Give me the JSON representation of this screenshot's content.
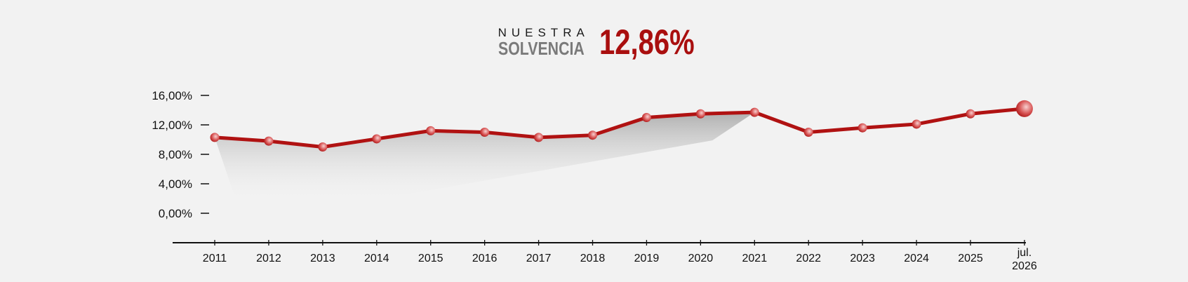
{
  "header": {
    "label_top": "NUESTRA",
    "label_bottom": "SOLVENCIA",
    "headline_value": "12,86%"
  },
  "colors": {
    "line": "#b01212",
    "accent": "#a90f0f"
  },
  "chart_data": {
    "type": "line",
    "categories": [
      "2011",
      "2012",
      "2013",
      "2014",
      "2015",
      "2016",
      "2017",
      "2018",
      "2019",
      "2020",
      "2021",
      "2022",
      "2023",
      "2024",
      "2025",
      "jul. 2026"
    ],
    "series": [
      {
        "values": [
          10.3,
          9.8,
          9.0,
          10.1,
          11.2,
          11.0,
          10.3,
          10.6,
          13.0,
          13.5,
          13.7,
          11.0,
          11.6,
          12.1,
          13.5,
          14.2
        ]
      }
    ],
    "y_ticks": [
      "16,00%",
      "12,00%",
      "8,00%",
      "4,00%",
      "0,00%"
    ],
    "ylim": [
      0,
      16
    ],
    "grid": false,
    "legend": "none"
  }
}
